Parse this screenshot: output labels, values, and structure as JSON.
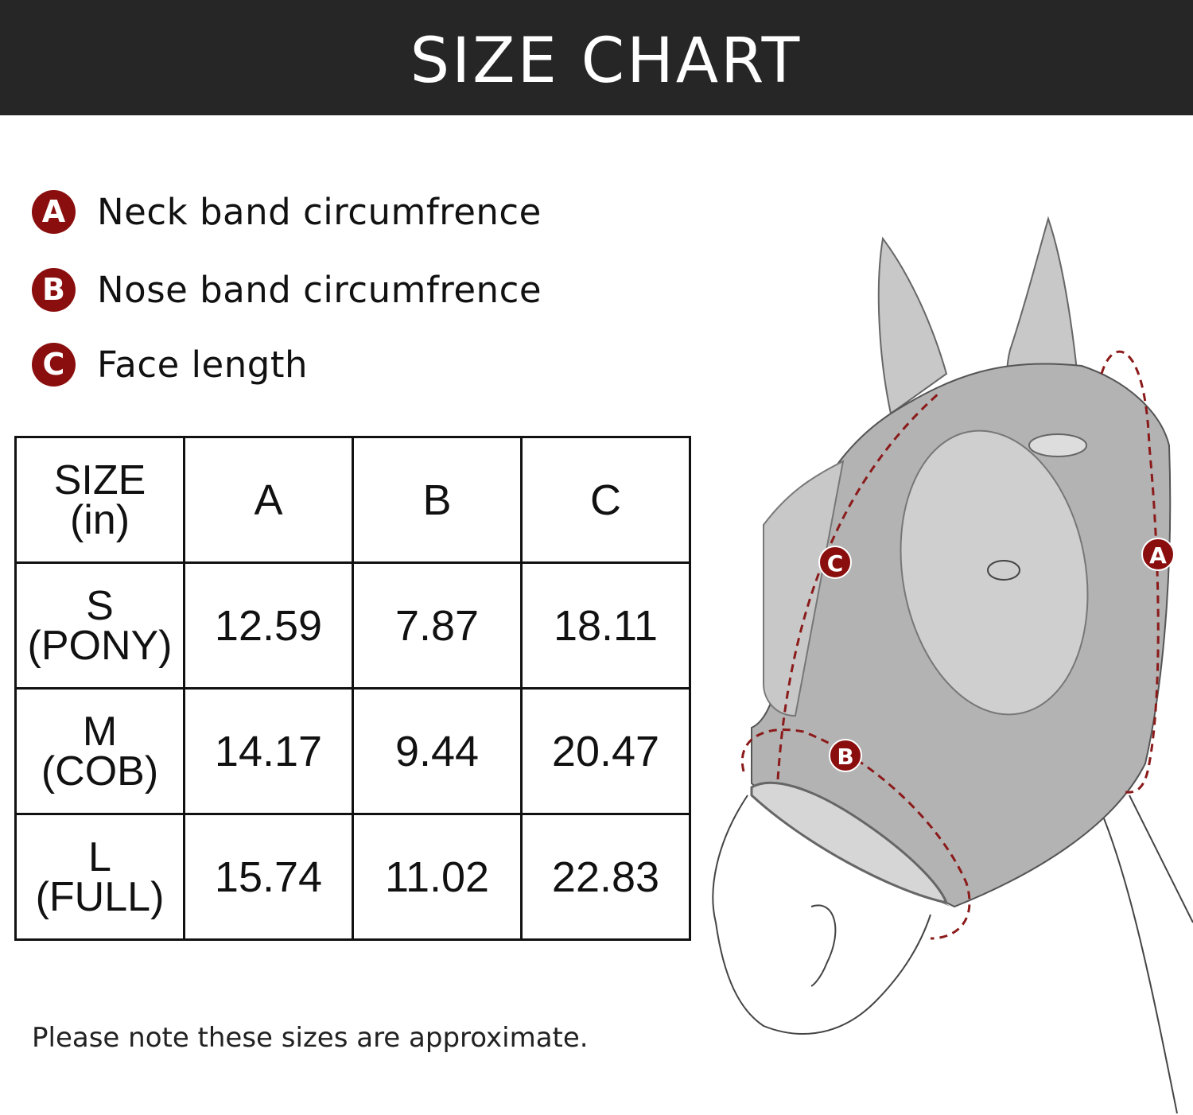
{
  "header": {
    "title": "SIZE CHART"
  },
  "legend": [
    {
      "letter": "A",
      "label": "Neck band circumfrence"
    },
    {
      "letter": "B",
      "label": "Nose band circumfrence"
    },
    {
      "letter": "C",
      "label": "Face length"
    }
  ],
  "table": {
    "headers": {
      "size_line1": "SIZE",
      "size_line2": "(in)",
      "a": "A",
      "b": "B",
      "c": "C"
    },
    "rows": [
      {
        "size": "S",
        "type": "(PONY)",
        "a": "12.59",
        "b": "7.87",
        "c": "18.11"
      },
      {
        "size": "M",
        "type": "(COB)",
        "a": "14.17",
        "b": "9.44",
        "c": "20.47"
      },
      {
        "size": "L",
        "type": "(FULL)",
        "a": "15.74",
        "b": "11.02",
        "c": "22.83"
      }
    ]
  },
  "note": "Please note these sizes are approximate.",
  "illustration": {
    "markers": [
      "A",
      "B",
      "C"
    ]
  },
  "colors": {
    "header_bg": "#262626",
    "badge": "#8b0e0e",
    "mask": "#b3b3b3",
    "arrow": "#8b1a1a"
  }
}
